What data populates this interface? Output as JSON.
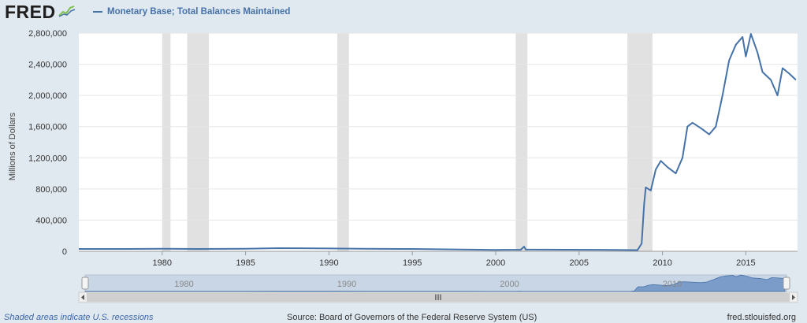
{
  "header": {
    "logo_text": "FRED",
    "legend_label": "Monetary Base; Total Balances Maintained",
    "series_color": "#4572a7"
  },
  "axis": {
    "y_title": "Millions of Dollars"
  },
  "footer": {
    "recessions_note": "Shaded areas indicate U.S. recessions",
    "source": "Source: Board of Governors of the Federal Reserve System (US)",
    "site": "fred.stlouisfed.org"
  },
  "navigator": {
    "labels": [
      "1980",
      "1990",
      "2000",
      "2010"
    ],
    "scroll_grip": "III"
  },
  "chart_data": {
    "type": "line",
    "title": "Monetary Base; Total Balances Maintained",
    "ylabel": "Millions of Dollars",
    "xlabel": "",
    "xlim": [
      1975.0,
      2018.1
    ],
    "ylim": [
      0,
      2800000
    ],
    "x_ticks": [
      1980,
      1985,
      1990,
      1995,
      2000,
      2005,
      2010,
      2015
    ],
    "y_ticks": [
      0,
      400000,
      800000,
      1200000,
      1600000,
      2000000,
      2400000,
      2800000
    ],
    "y_tick_labels": [
      "0",
      "400,000",
      "800,000",
      "1,200,000",
      "1,600,000",
      "2,000,000",
      "2,400,000",
      "2,800,000"
    ],
    "grid": true,
    "recessions": [
      [
        1980.0,
        1980.5
      ],
      [
        1981.5,
        1982.8
      ],
      [
        1990.5,
        1991.2
      ],
      [
        2001.2,
        2001.9
      ],
      [
        2007.9,
        2009.4
      ]
    ],
    "series": [
      {
        "name": "Monetary Base; Total Balances Maintained",
        "color": "#4572a7",
        "points": [
          [
            1975.0,
            30000
          ],
          [
            1978.0,
            30000
          ],
          [
            1980.0,
            33000
          ],
          [
            1982.0,
            30000
          ],
          [
            1985.0,
            32000
          ],
          [
            1987.0,
            40000
          ],
          [
            1990.0,
            36000
          ],
          [
            1992.0,
            32000
          ],
          [
            1995.0,
            30000
          ],
          [
            1998.0,
            22000
          ],
          [
            2000.0,
            18000
          ],
          [
            2001.5,
            20000
          ],
          [
            2001.7,
            60000
          ],
          [
            2001.8,
            22000
          ],
          [
            2004.0,
            20000
          ],
          [
            2007.0,
            18000
          ],
          [
            2008.5,
            15000
          ],
          [
            2008.75,
            100000
          ],
          [
            2008.9,
            600000
          ],
          [
            2009.0,
            820000
          ],
          [
            2009.3,
            780000
          ],
          [
            2009.6,
            1050000
          ],
          [
            2009.9,
            1160000
          ],
          [
            2010.3,
            1080000
          ],
          [
            2010.8,
            1000000
          ],
          [
            2011.2,
            1200000
          ],
          [
            2011.5,
            1600000
          ],
          [
            2011.8,
            1650000
          ],
          [
            2012.3,
            1580000
          ],
          [
            2012.8,
            1500000
          ],
          [
            2013.2,
            1600000
          ],
          [
            2013.6,
            2000000
          ],
          [
            2014.0,
            2450000
          ],
          [
            2014.4,
            2650000
          ],
          [
            2014.8,
            2750000
          ],
          [
            2015.0,
            2500000
          ],
          [
            2015.3,
            2790000
          ],
          [
            2015.7,
            2550000
          ],
          [
            2016.0,
            2300000
          ],
          [
            2016.5,
            2200000
          ],
          [
            2016.9,
            2000000
          ],
          [
            2017.2,
            2350000
          ],
          [
            2017.6,
            2280000
          ],
          [
            2018.0,
            2200000
          ]
        ]
      }
    ]
  }
}
